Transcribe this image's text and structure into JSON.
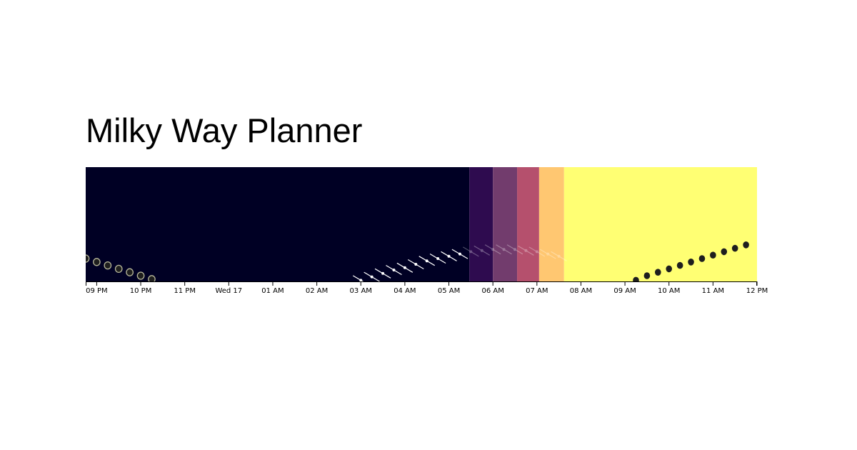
{
  "title": "Milky Way Planner",
  "chart_data": {
    "type": "timeline",
    "x_domain": [
      "Tue 16 20:45",
      "Wed 17 12:00"
    ],
    "tick_labels": [
      "09 PM",
      "10 PM",
      "11 PM",
      "Wed 17",
      "01 AM",
      "02 AM",
      "03 AM",
      "04 AM",
      "05 AM",
      "06 AM",
      "07 AM",
      "08 AM",
      "09 AM",
      "10 AM",
      "11 AM",
      "12 PM"
    ],
    "tick_times": [
      "21:00",
      "22:00",
      "23:00",
      "00:00",
      "01:00",
      "02:00",
      "03:00",
      "04:00",
      "05:00",
      "06:00",
      "07:00",
      "08:00",
      "09:00",
      "10:00",
      "11:00",
      "12:00"
    ],
    "sky_phases": [
      {
        "name": "night",
        "start": "20:45",
        "end": "05:28",
        "color": "#000024"
      },
      {
        "name": "astronomical twilight",
        "start": "05:28",
        "end": "06:00",
        "color": "#2e0b4f"
      },
      {
        "name": "nautical twilight",
        "start": "06:00",
        "end": "06:33",
        "color": "#723c6d"
      },
      {
        "name": "civil twilight",
        "start": "06:33",
        "end": "07:03",
        "color": "#b5506d"
      },
      {
        "name": "golden hour",
        "start": "07:03",
        "end": "07:37",
        "color": "#ffc771"
      },
      {
        "name": "day",
        "start": "07:37",
        "end": "12:00",
        "color": "#ffff73"
      }
    ],
    "moon": {
      "color": "#1e1e1e",
      "rim_color": "#b8b89a",
      "positions": [
        {
          "time": "20:45",
          "altitude": 0.2
        },
        {
          "time": "21:00",
          "altitude": 0.17
        },
        {
          "time": "21:15",
          "altitude": 0.14
        },
        {
          "time": "21:30",
          "altitude": 0.11
        },
        {
          "time": "21:45",
          "altitude": 0.08
        },
        {
          "time": "22:00",
          "altitude": 0.05
        },
        {
          "time": "22:15",
          "altitude": 0.02
        }
      ],
      "day_positions": [
        {
          "time": "09:15",
          "altitude": 0.01
        },
        {
          "time": "09:30",
          "altitude": 0.05
        },
        {
          "time": "09:45",
          "altitude": 0.08
        },
        {
          "time": "10:00",
          "altitude": 0.11
        },
        {
          "time": "10:15",
          "altitude": 0.14
        },
        {
          "time": "10:30",
          "altitude": 0.17
        },
        {
          "time": "10:45",
          "altitude": 0.2
        },
        {
          "time": "11:00",
          "altitude": 0.23
        },
        {
          "time": "11:15",
          "altitude": 0.26
        },
        {
          "time": "11:30",
          "altitude": 0.29
        },
        {
          "time": "11:45",
          "altitude": 0.32
        }
      ]
    },
    "milky_way_core": {
      "color": "#ffffff",
      "positions": [
        {
          "time": "03:00",
          "altitude": 0.01,
          "visible": true
        },
        {
          "time": "03:15",
          "altitude": 0.04,
          "visible": true
        },
        {
          "time": "03:30",
          "altitude": 0.07,
          "visible": true
        },
        {
          "time": "03:45",
          "altitude": 0.1,
          "visible": true
        },
        {
          "time": "04:00",
          "altitude": 0.12,
          "visible": true
        },
        {
          "time": "04:15",
          "altitude": 0.15,
          "visible": true
        },
        {
          "time": "04:30",
          "altitude": 0.18,
          "visible": true
        },
        {
          "time": "04:45",
          "altitude": 0.2,
          "visible": true
        },
        {
          "time": "05:00",
          "altitude": 0.22,
          "visible": true
        },
        {
          "time": "05:15",
          "altitude": 0.24,
          "visible": true
        },
        {
          "time": "05:30",
          "altitude": 0.26,
          "visible": false
        },
        {
          "time": "05:45",
          "altitude": 0.27,
          "visible": false
        },
        {
          "time": "06:00",
          "altitude": 0.28,
          "visible": false
        },
        {
          "time": "06:15",
          "altitude": 0.28,
          "visible": false
        },
        {
          "time": "06:30",
          "altitude": 0.28,
          "visible": false
        },
        {
          "time": "06:45",
          "altitude": 0.27,
          "visible": false
        },
        {
          "time": "07:00",
          "altitude": 0.26,
          "visible": false
        },
        {
          "time": "07:15",
          "altitude": 0.24,
          "visible": false
        },
        {
          "time": "07:30",
          "altitude": 0.22,
          "visible": false
        }
      ]
    }
  }
}
